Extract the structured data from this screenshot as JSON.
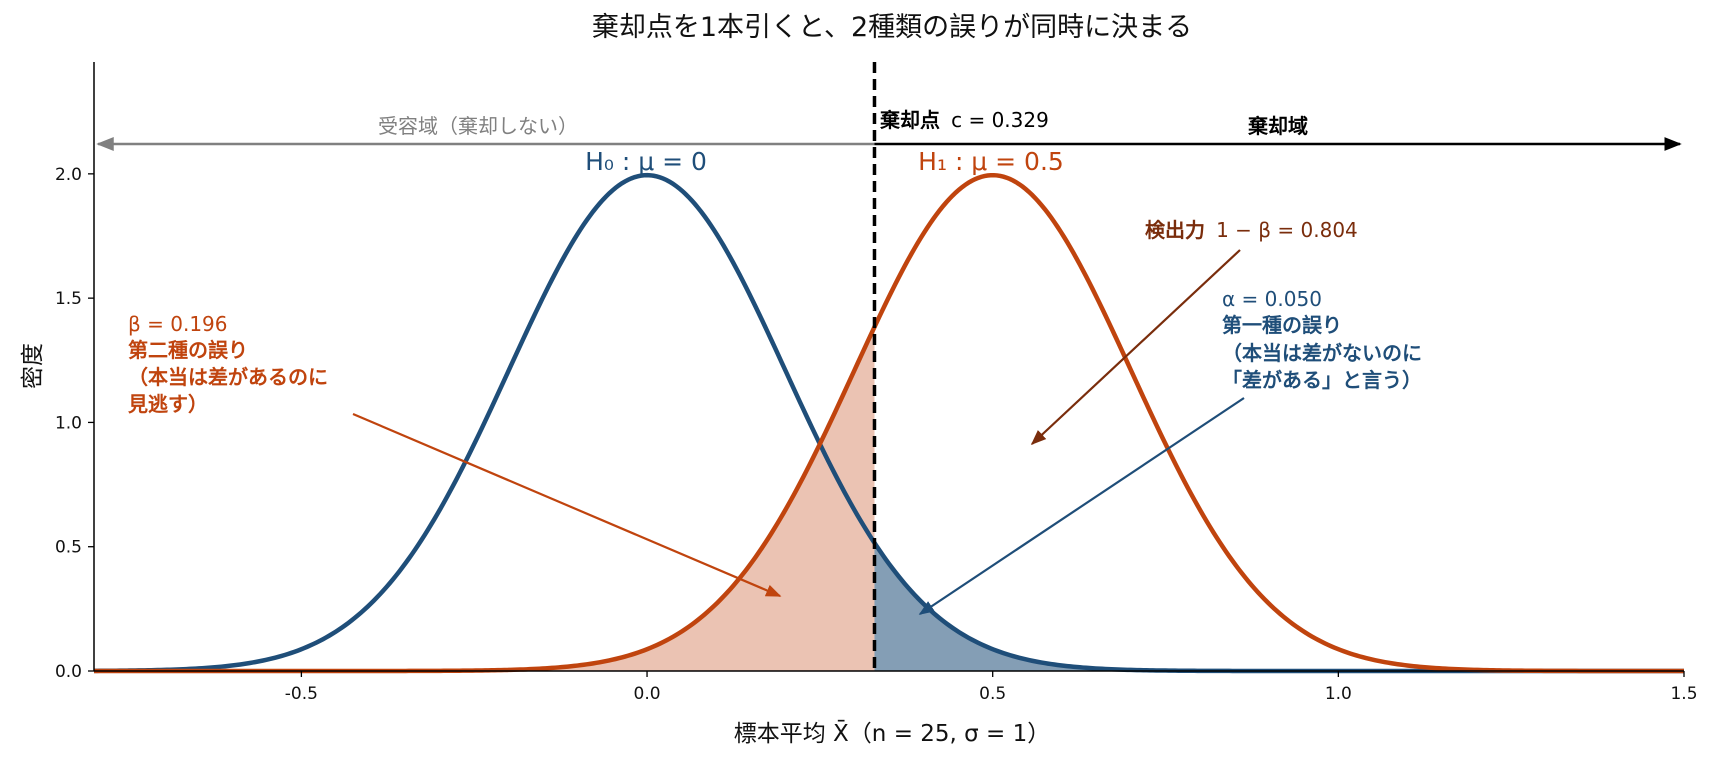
{
  "chart_data": {
    "type": "line",
    "title": "棄却点を1本引くと、2種類の誤りが同時に決まる",
    "xlabel": "標本平均 X̄（n = 25, σ = 1）",
    "ylabel": "密度",
    "xlim": [
      -0.8,
      1.5
    ],
    "ylim": [
      0,
      2.45
    ],
    "x_ticks": [
      -0.5,
      0.0,
      0.5,
      1.0,
      1.5
    ],
    "x_tick_labels": [
      "-0.5",
      "0.0",
      "0.5",
      "1.0",
      "1.5"
    ],
    "y_ticks": [
      0.0,
      0.5,
      1.0,
      1.5,
      2.0
    ],
    "y_tick_labels": [
      "0.0",
      "0.5",
      "1.0",
      "1.5",
      "2.0"
    ],
    "grid": false,
    "series": [
      {
        "name": "H0 : μ = 0",
        "distribution": "normal",
        "mean": 0.0,
        "sd": 0.2,
        "color": "#1f4e79"
      },
      {
        "name": "H1 : μ = 0.5",
        "distribution": "normal",
        "mean": 0.5,
        "sd": 0.2,
        "color": "#c0440e"
      }
    ],
    "critical_value": 0.329,
    "shaded_regions": [
      {
        "name": "β",
        "series": "H1 : μ = 0.5",
        "from": -0.8,
        "to": 0.329,
        "color": "#e8b8a6"
      },
      {
        "name": "α",
        "series": "H0 : μ = 0",
        "from": 0.329,
        "to": 1.5,
        "color": "#7f9bb4"
      }
    ],
    "labels": {
      "h0": "H₀ : μ = 0",
      "h1": "H₁ : μ = 0.5",
      "critical": "棄却点",
      "critical_value": "c = 0.329",
      "accept_region": "受容域（棄却しない）",
      "reject_region": "棄却域",
      "power_label": "検出力",
      "power_value": "1 − β = 0.804",
      "alpha_value": "α = 0.050",
      "alpha_line1": "第一種の誤り",
      "alpha_line2": "（本当は差がないのに",
      "alpha_line3": "「差がある」と言う）",
      "beta_value": "β = 0.196",
      "beta_line1": "第二種の誤り",
      "beta_line2": "（本当は差があるのに",
      "beta_line3": "見逃す）"
    },
    "colors": {
      "h0": "#1f4e79",
      "h1": "#c0440e",
      "power": "#7a2d0c",
      "accept": "#808080",
      "reject": "#000000"
    }
  }
}
